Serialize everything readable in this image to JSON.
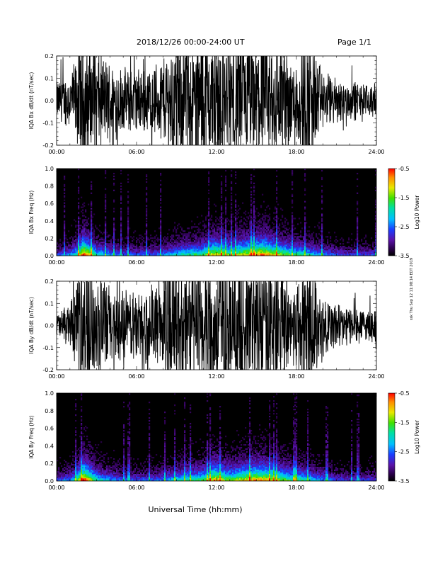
{
  "header": {
    "title": "2018/12/26  00:00-24:00 UT",
    "page": "Page 1/1"
  },
  "side_stamp": "ssk Thu Sep 12 11:08:14 EDT 2019",
  "footer": {
    "xlabel": "Universal Time (hh:mm)"
  },
  "chart_data": [
    {
      "type": "line",
      "title": "",
      "ylabel": "IQA Bx dB/dt (nT/sec)",
      "xlabel": "",
      "x_ticks": [
        "00:00",
        "06:00",
        "12:00",
        "18:00",
        "24:00"
      ],
      "y_ticks": [
        "0.2",
        "0.1",
        "0.0",
        "-0.1",
        "-0.2"
      ],
      "xlim": [
        0,
        24
      ],
      "ylim": [
        -0.2,
        0.2
      ],
      "series": [
        {
          "hours": [
            0,
            0.5,
            1,
            1.5,
            1.8,
            2,
            2.5,
            3,
            3.5,
            4,
            4.5,
            5,
            5.5,
            6,
            6.5,
            7,
            7.5,
            8,
            8.5,
            9,
            9.5,
            10,
            10.5,
            11,
            11.5,
            12,
            12.5,
            13,
            13.5,
            14,
            14.5,
            15,
            15.5,
            16,
            16.5,
            17,
            17.5,
            18,
            18.5,
            19,
            19.5,
            20,
            20.5,
            21,
            21.5,
            22,
            22.5,
            23,
            23.5,
            24
          ],
          "amplitude": [
            0.06,
            0.07,
            0.09,
            0.13,
            0.2,
            0.2,
            0.17,
            0.15,
            0.14,
            0.12,
            0.11,
            0.1,
            0.1,
            0.1,
            0.1,
            0.1,
            0.12,
            0.14,
            0.16,
            0.2,
            0.2,
            0.2,
            0.2,
            0.2,
            0.2,
            0.2,
            0.2,
            0.2,
            0.2,
            0.2,
            0.2,
            0.2,
            0.2,
            0.2,
            0.2,
            0.2,
            0.13,
            0.15,
            0.2,
            0.2,
            0.14,
            0.09,
            0.08,
            0.07,
            0.06,
            0.06,
            0.06,
            0.05,
            0.05,
            0.05
          ]
        }
      ]
    },
    {
      "type": "heatmap",
      "title": "",
      "ylabel": "IQA Bx Freq (Hz)",
      "x_ticks": [
        "00:00",
        "06:00",
        "12:00",
        "18:00",
        "24:00"
      ],
      "y_ticks": [
        "1.0",
        "0.8",
        "0.6",
        "0.4",
        "0.2",
        "0.0"
      ],
      "xlim": [
        0,
        24
      ],
      "ylim": [
        0,
        1.0
      ],
      "colorbar": {
        "label": "Log10 Power",
        "ticks": [
          "-0.5",
          "-1.5",
          "-2.5",
          "-3.5"
        ],
        "range": [
          -3.5,
          -0.5
        ]
      },
      "activity": [
        0.3,
        0.35,
        0.4,
        0.6,
        1.0,
        0.8,
        0.55,
        0.5,
        0.45,
        0.4,
        0.35,
        0.35,
        0.35,
        0.35,
        0.35,
        0.35,
        0.4,
        0.45,
        0.5,
        0.55,
        0.6,
        0.6,
        0.62,
        0.7,
        0.85,
        0.8,
        0.7,
        0.7,
        0.78,
        0.82,
        0.85,
        0.9,
        0.9,
        0.82,
        0.75,
        0.7,
        0.6,
        0.6,
        0.55,
        0.5,
        0.45,
        0.4,
        0.35,
        0.32,
        0.3,
        0.3,
        0.3,
        0.3,
        0.3,
        0.3
      ]
    },
    {
      "type": "line",
      "title": "",
      "ylabel": "IQA By dB/dt (nT/sec)",
      "x_ticks": [
        "00:00",
        "06:00",
        "12:00",
        "18:00",
        "24:00"
      ],
      "y_ticks": [
        "0.2",
        "0.1",
        "0.0",
        "-0.1",
        "-0.2"
      ],
      "xlim": [
        0,
        24
      ],
      "ylim": [
        -0.2,
        0.2
      ],
      "series": [
        {
          "hours": [
            0,
            0.5,
            1,
            1.5,
            1.8,
            2,
            2.5,
            3,
            3.5,
            4,
            4.5,
            5,
            5.5,
            6,
            6.5,
            7,
            7.5,
            8,
            8.5,
            9,
            9.5,
            10,
            10.5,
            11,
            11.5,
            12,
            12.5,
            13,
            13.5,
            14,
            14.5,
            15,
            15.5,
            16,
            16.5,
            17,
            17.5,
            18,
            18.5,
            19,
            19.5,
            20,
            20.5,
            21,
            21.5,
            22,
            22.5,
            23,
            23.5,
            24
          ],
          "amplitude": [
            0.04,
            0.05,
            0.08,
            0.12,
            0.2,
            0.2,
            0.18,
            0.17,
            0.15,
            0.13,
            0.12,
            0.11,
            0.11,
            0.11,
            0.11,
            0.12,
            0.14,
            0.17,
            0.2,
            0.2,
            0.2,
            0.2,
            0.2,
            0.2,
            0.2,
            0.2,
            0.2,
            0.2,
            0.2,
            0.2,
            0.2,
            0.2,
            0.2,
            0.2,
            0.2,
            0.2,
            0.12,
            0.14,
            0.2,
            0.2,
            0.14,
            0.1,
            0.08,
            0.07,
            0.06,
            0.06,
            0.06,
            0.05,
            0.05,
            0.05
          ]
        }
      ]
    },
    {
      "type": "heatmap",
      "title": "",
      "ylabel": "IQA By Freq (Hz)",
      "x_ticks": [
        "00:00",
        "06:00",
        "12:00",
        "18:00",
        "24:00"
      ],
      "y_ticks": [
        "1.0",
        "0.8",
        "0.6",
        "0.4",
        "0.2",
        "0.0"
      ],
      "xlim": [
        0,
        24
      ],
      "ylim": [
        0,
        1.0
      ],
      "colorbar": {
        "label": "Log10 Power",
        "ticks": [
          "-0.5",
          "-1.5",
          "-2.5",
          "-3.5"
        ],
        "range": [
          -3.5,
          -0.5
        ]
      },
      "activity": [
        0.3,
        0.35,
        0.4,
        0.6,
        1.0,
        0.8,
        0.55,
        0.5,
        0.45,
        0.4,
        0.35,
        0.35,
        0.35,
        0.35,
        0.35,
        0.35,
        0.4,
        0.45,
        0.5,
        0.55,
        0.6,
        0.6,
        0.62,
        0.7,
        0.88,
        0.8,
        0.7,
        0.7,
        0.78,
        0.82,
        0.85,
        0.88,
        0.85,
        0.8,
        0.72,
        0.68,
        0.6,
        0.6,
        0.55,
        0.5,
        0.45,
        0.4,
        0.35,
        0.32,
        0.3,
        0.3,
        0.3,
        0.3,
        0.3,
        0.3
      ]
    }
  ]
}
